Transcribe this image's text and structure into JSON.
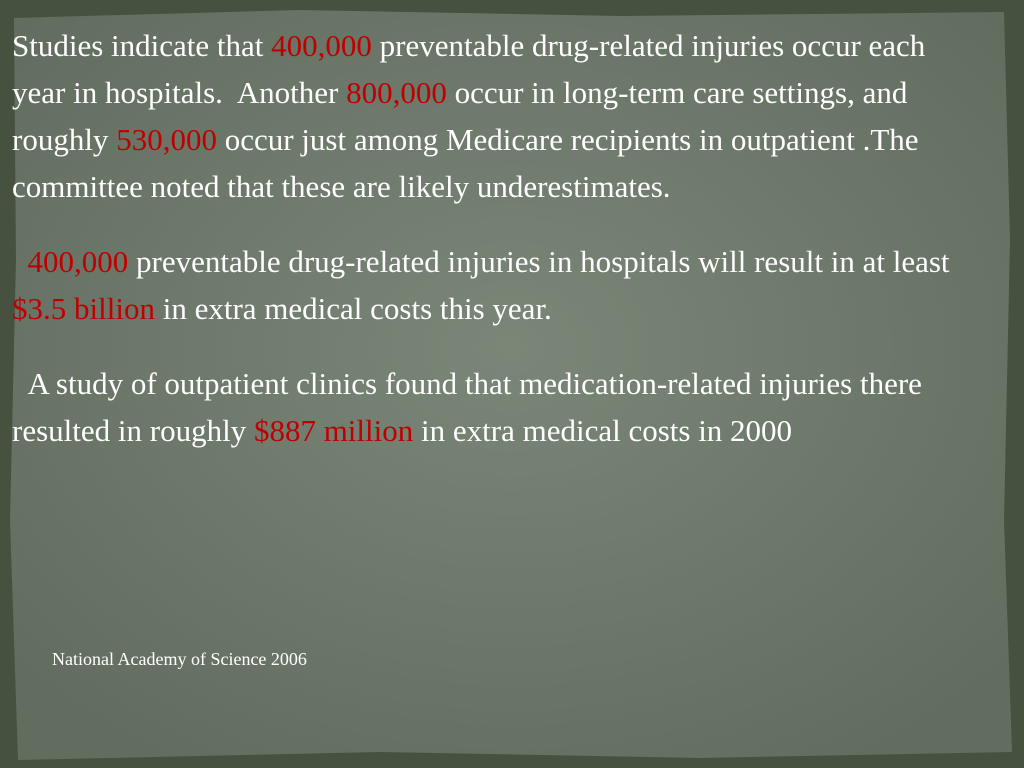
{
  "slide": {
    "paragraphs": [
      {
        "runs": [
          {
            "text": "Studies indicate that "
          },
          {
            "text": "400,000",
            "color": "#c00000"
          },
          {
            "text": " preventable drug-related injuries occur each year in hospitals.  Another "
          },
          {
            "text": "800,000",
            "color": "#c00000"
          },
          {
            "text": " occur in long-term care settings, and roughly "
          },
          {
            "text": "530,000",
            "color": "#c00000"
          },
          {
            "text": " occur just among Medicare recipients in outpatient .The committee noted that these are likely underestimates."
          }
        ]
      },
      {
        "runs": [
          {
            "text": "  "
          },
          {
            "text": "400,000",
            "color": "#c00000"
          },
          {
            "text": " preventable drug-related injuries in hospitals will result in at least "
          },
          {
            "text": "$3.5 billion",
            "color": "#c00000"
          },
          {
            "text": " in extra medical costs this year."
          }
        ]
      },
      {
        "runs": [
          {
            "text": "  A study of outpatient clinics found that medication-related injuries there resulted in roughly "
          },
          {
            "text": "$887 million",
            "color": "#c00000"
          },
          {
            "text": " in extra medical costs in 2000"
          }
        ]
      }
    ],
    "source": "National Academy of Science 2006"
  }
}
